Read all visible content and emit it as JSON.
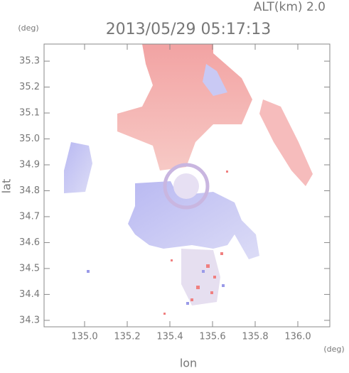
{
  "chart_data": {
    "type": "field",
    "title": "2013/05/29 05:17:13",
    "subtitle": "ALT(km) 2.0",
    "y_unit": "(deg)",
    "x_unit": "(deg)",
    "xlabel": "lon",
    "ylabel": "lat",
    "xlim": [
      134.81,
      136.15
    ],
    "ylim": [
      34.275,
      35.366
    ],
    "xticks": [
      {
        "value": 135.0,
        "label": "135.0"
      },
      135.2,
      135.4,
      135.6,
      135.8,
      {
        "value": 136.0,
        "label": "136.0"
      }
    ],
    "yticks": [
      35.3,
      35.2,
      35.1,
      {
        "value": 35.0,
        "label": "35.0"
      },
      34.9,
      34.8,
      34.7,
      34.6,
      34.5,
      34.4,
      34.3
    ]
  }
}
